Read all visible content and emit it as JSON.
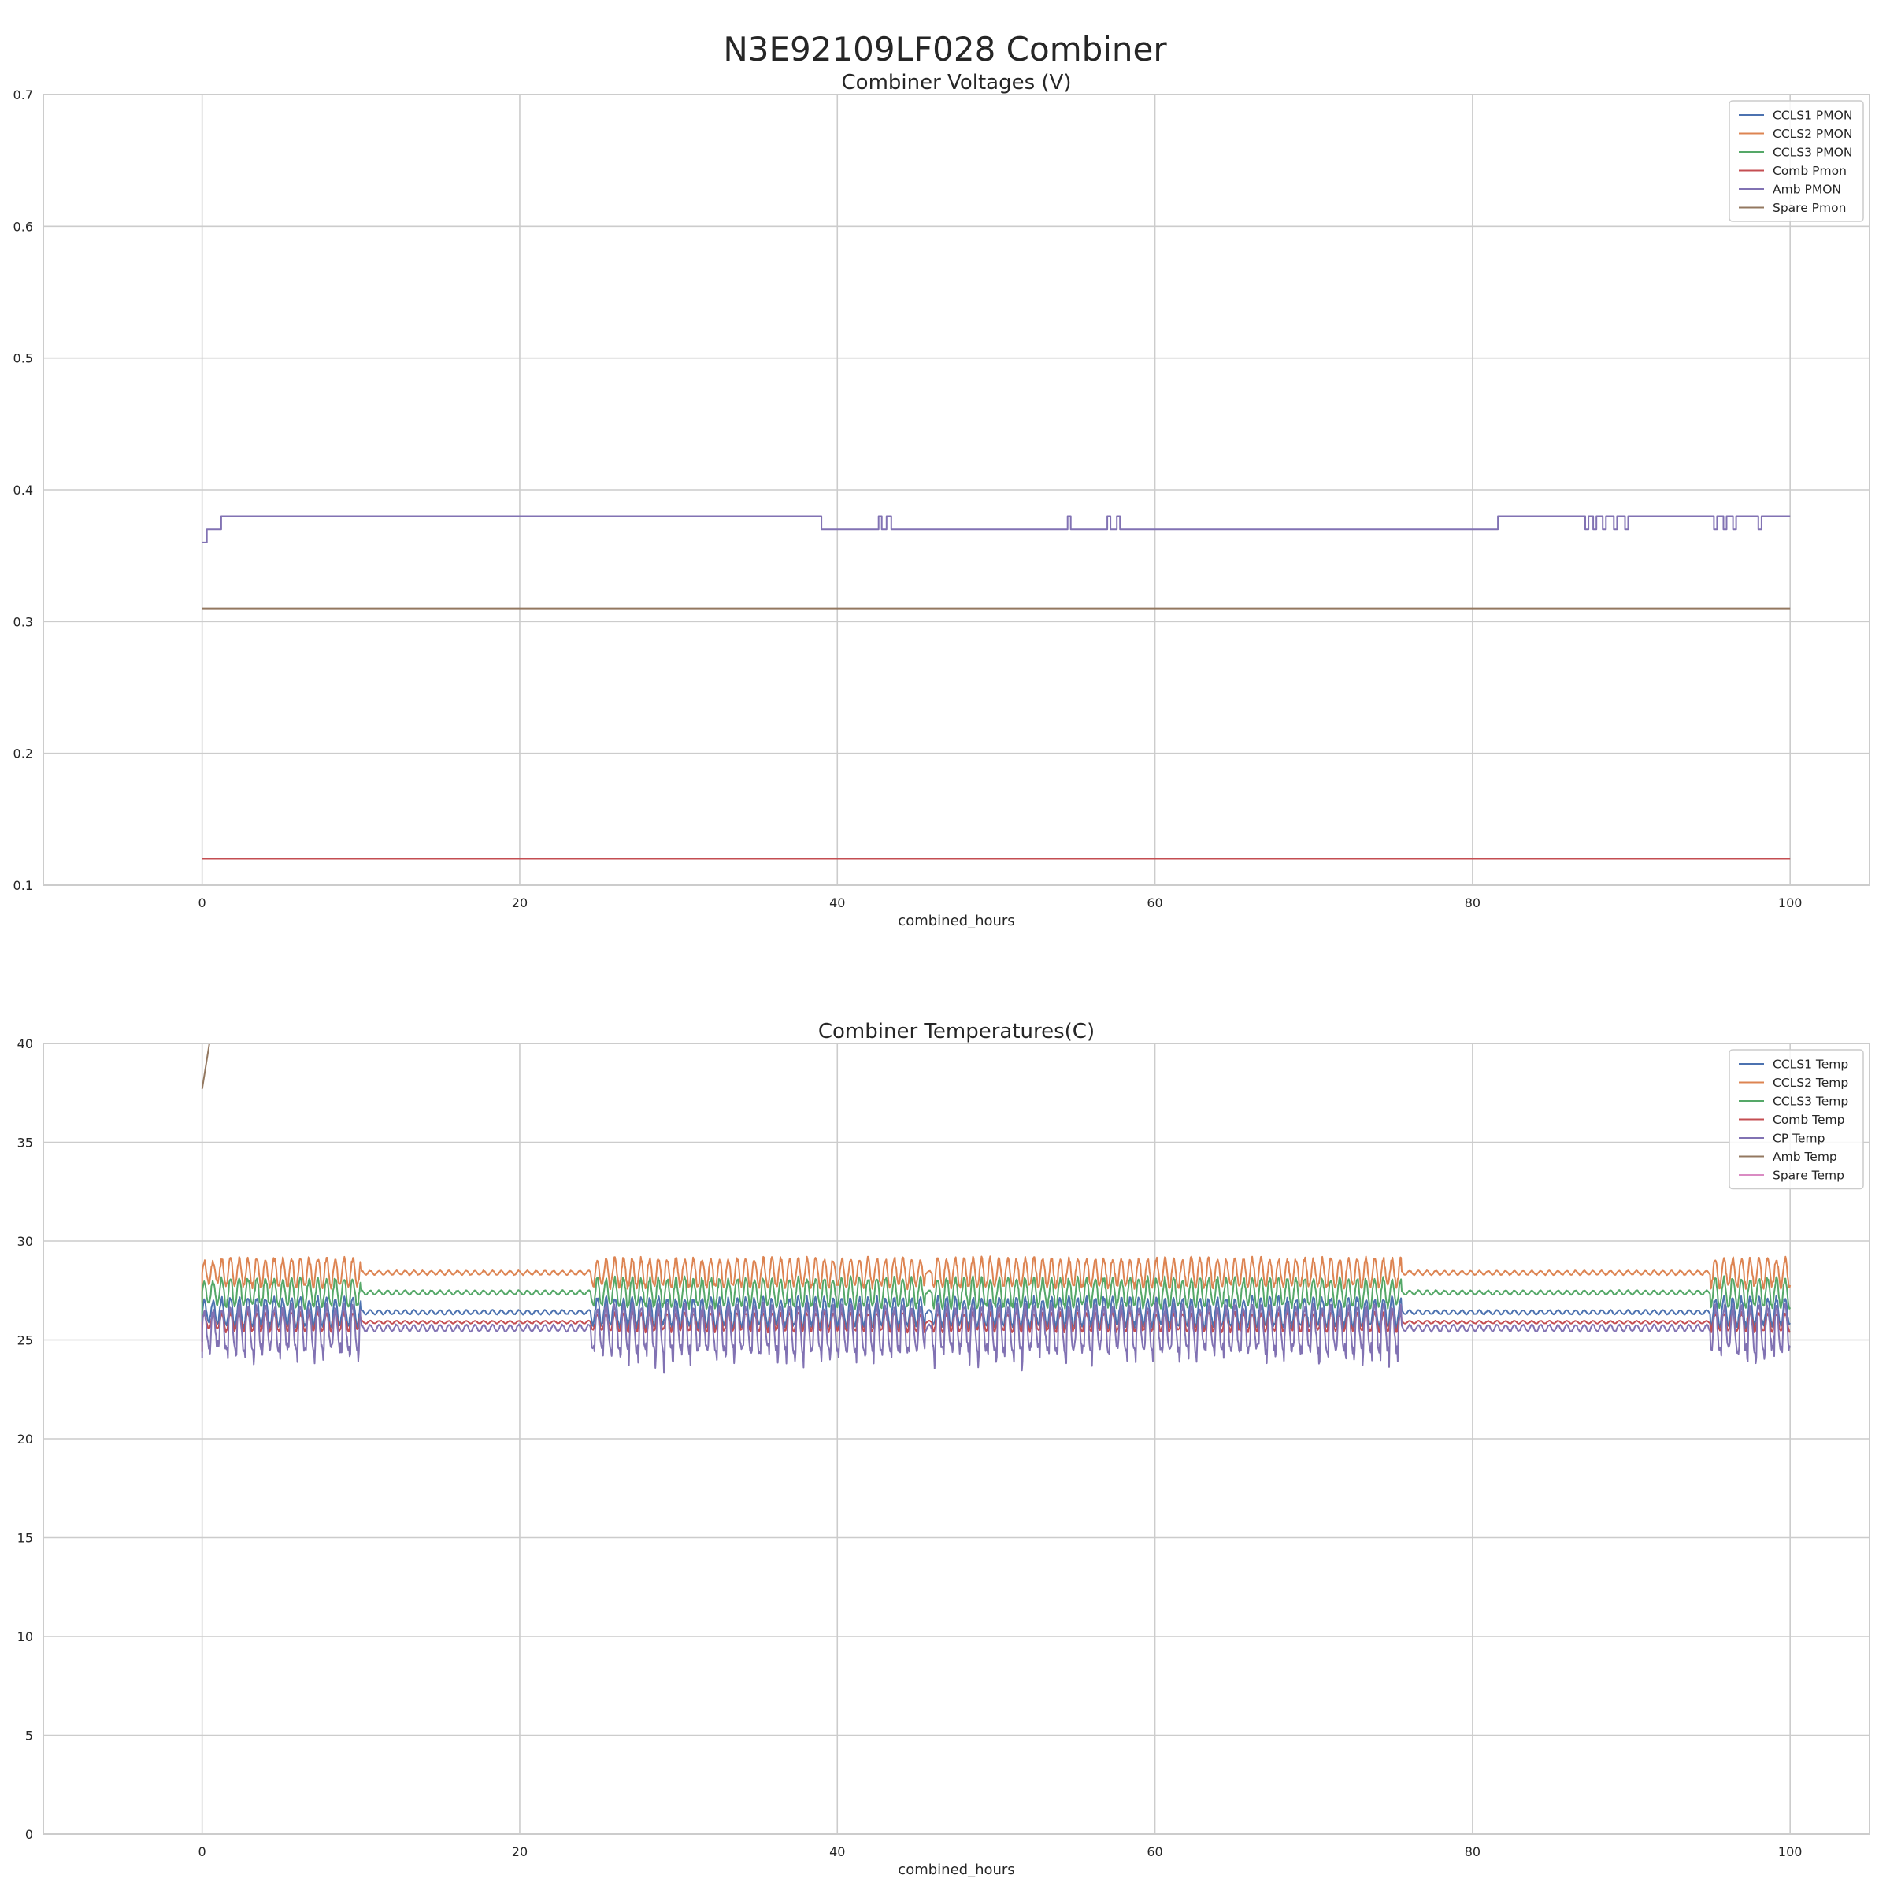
{
  "figure": {
    "suptitle": "N3E92109LF028 Combiner"
  },
  "chart_data": [
    {
      "type": "line",
      "title": "Combiner Voltages (V)",
      "xlabel": "combined_hours",
      "ylabel": "",
      "xlim": [
        -10,
        105
      ],
      "ylim": [
        0.1,
        0.7
      ],
      "xticks": [
        0,
        20,
        40,
        60,
        80,
        100
      ],
      "yticks": [
        0.1,
        0.2,
        0.3,
        0.4,
        0.5,
        0.6,
        0.7
      ],
      "xtick_labels": [
        "0",
        "20",
        "40",
        "60",
        "80",
        "100"
      ],
      "ytick_labels": [
        "0.1",
        "0.2",
        "0.3",
        "0.4",
        "0.5",
        "0.6",
        "0.7"
      ],
      "grid": true,
      "legend_position": "top-right",
      "series": [
        {
          "name": "CCLS1 PMON",
          "color": "#4c72b0",
          "step": true,
          "x": [
            0,
            100
          ],
          "y": [
            0.1,
            0.1
          ]
        },
        {
          "name": "CCLS2 PMON",
          "color": "#dd8452",
          "step": true,
          "x": [
            0,
            100
          ],
          "y": [
            0.1,
            0.1
          ]
        },
        {
          "name": "CCLS3 PMON",
          "color": "#55a868",
          "step": true,
          "x": [
            0,
            100
          ],
          "y": [
            0.1,
            0.1
          ]
        },
        {
          "name": "Comb Pmon",
          "color": "#c44e52",
          "step": true,
          "x": [
            0,
            100
          ],
          "y": [
            0.12,
            0.12
          ]
        },
        {
          "name": "Amb PMON",
          "color": "#8172b3",
          "step": true,
          "x": [
            0,
            0.3,
            0.3,
            1.2,
            1.2,
            39.0,
            39.0,
            39.2,
            39.2,
            42.6,
            42.6,
            42.8,
            42.8,
            43.1,
            43.1,
            43.4,
            43.4,
            54.5,
            54.5,
            54.7,
            54.7,
            57.0,
            57.0,
            57.2,
            57.2,
            57.6,
            57.6,
            57.8,
            57.8,
            70.5,
            70.5,
            70.9,
            70.9,
            81.6,
            81.6,
            87.1,
            87.1,
            87.3,
            87.3,
            87.6,
            87.6,
            87.8,
            87.8,
            88.2,
            88.2,
            88.4,
            88.4,
            88.9,
            88.9,
            89.1,
            89.1,
            89.6,
            89.6,
            89.8,
            89.8,
            95.2,
            95.2,
            95.4,
            95.4,
            95.8,
            95.8,
            96.0,
            96.0,
            96.4,
            96.4,
            96.6,
            96.6,
            98.0,
            98.0,
            98.2,
            98.2,
            100
          ],
          "y": [
            0.36,
            0.36,
            0.37,
            0.37,
            0.38,
            0.38,
            0.37,
            0.37,
            0.37,
            0.37,
            0.38,
            0.38,
            0.37,
            0.37,
            0.38,
            0.38,
            0.37,
            0.37,
            0.38,
            0.38,
            0.37,
            0.37,
            0.38,
            0.38,
            0.37,
            0.37,
            0.38,
            0.38,
            0.37,
            0.37,
            0.37,
            0.37,
            0.37,
            0.37,
            0.38,
            0.38,
            0.37,
            0.37,
            0.38,
            0.38,
            0.37,
            0.37,
            0.38,
            0.38,
            0.37,
            0.37,
            0.38,
            0.38,
            0.37,
            0.37,
            0.38,
            0.38,
            0.37,
            0.37,
            0.38,
            0.38,
            0.37,
            0.37,
            0.38,
            0.38,
            0.37,
            0.37,
            0.38,
            0.38,
            0.37,
            0.37,
            0.38,
            0.38,
            0.37,
            0.37,
            0.38,
            0.38
          ]
        },
        {
          "name": "Spare Pmon",
          "color": "#937860",
          "step": true,
          "x": [
            0,
            100
          ],
          "y": [
            0.31,
            0.31
          ]
        }
      ]
    },
    {
      "type": "line",
      "title": "Combiner Temperatures(C)",
      "xlabel": "combined_hours",
      "ylabel": "",
      "xlim": [
        -10,
        105
      ],
      "ylim": [
        0,
        40
      ],
      "xticks": [
        0,
        20,
        40,
        60,
        80,
        100
      ],
      "yticks": [
        0,
        5,
        10,
        15,
        20,
        25,
        30,
        35,
        40
      ],
      "xtick_labels": [
        "0",
        "20",
        "40",
        "60",
        "80",
        "100"
      ],
      "ytick_labels": [
        "0",
        "5",
        "10",
        "15",
        "20",
        "25",
        "30",
        "35",
        "40"
      ],
      "grid": true,
      "legend_position": "top-right",
      "active_segments": [
        [
          0,
          10
        ],
        [
          24.5,
          45.5
        ],
        [
          46,
          75.5
        ],
        [
          95,
          100
        ]
      ],
      "series": [
        {
          "name": "CCLS1 Temp",
          "color": "#4c72b0",
          "base": 26.4,
          "amp": 0.7
        },
        {
          "name": "CCLS2 Temp",
          "color": "#dd8452",
          "base": 28.4,
          "amp": 0.7
        },
        {
          "name": "CCLS3 Temp",
          "color": "#55a868",
          "base": 27.4,
          "amp": 0.7
        },
        {
          "name": "Comb Temp",
          "color": "#c44e52",
          "base": 25.9,
          "amp": 0.45
        },
        {
          "name": "CP Temp",
          "color": "#8172b3",
          "base": 25.6,
          "amp": 1.1
        },
        {
          "name": "Amb Temp",
          "color": "#937860",
          "x": [
            0,
            0.5
          ],
          "y": [
            37.7,
            40.2
          ]
        },
        {
          "name": "Spare Temp",
          "color": "#da8bc3"
        }
      ]
    }
  ]
}
